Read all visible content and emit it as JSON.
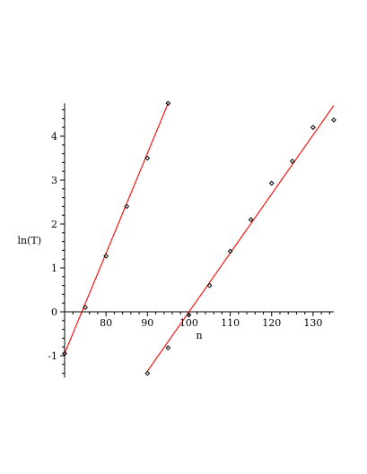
{
  "chart_data": {
    "type": "scatter",
    "xlabel": "n",
    "ylabel": "ln(T)",
    "xlim": [
      70,
      135
    ],
    "ylim": [
      -1.5,
      4.75
    ],
    "x_ticks": [
      80,
      90,
      100,
      110,
      120,
      130
    ],
    "y_ticks": [
      -1,
      0,
      1,
      2,
      3,
      4
    ],
    "x_tick_labels": [
      "80",
      "90",
      "100",
      "110",
      "120",
      "130"
    ],
    "y_tick_labels": [
      "-1",
      "0",
      "1",
      "2",
      "3",
      "4"
    ],
    "grid": false,
    "legend": "none",
    "series": [
      {
        "points": [
          [
            70,
            -0.95
          ],
          [
            75,
            0.1
          ],
          [
            80,
            1.27
          ],
          [
            85,
            2.4
          ],
          [
            90,
            3.5
          ],
          [
            95,
            4.75
          ]
        ],
        "fit_line": [
          [
            70,
            -0.95
          ],
          [
            95,
            4.75
          ]
        ],
        "marker": "diamond",
        "marker_color": "#000000",
        "line_color": "#ff0000"
      },
      {
        "points": [
          [
            90,
            -1.4
          ],
          [
            95,
            -0.82
          ],
          [
            100,
            -0.07
          ],
          [
            105,
            0.6
          ],
          [
            110,
            1.38
          ],
          [
            115,
            2.1
          ],
          [
            120,
            2.93
          ],
          [
            125,
            3.43
          ],
          [
            130,
            4.2
          ],
          [
            135,
            4.37
          ]
        ],
        "fit_line": [
          [
            90,
            -1.35
          ],
          [
            135,
            4.7
          ]
        ],
        "marker": "diamond",
        "marker_color": "#000000",
        "line_color": "#ff0000"
      }
    ]
  }
}
